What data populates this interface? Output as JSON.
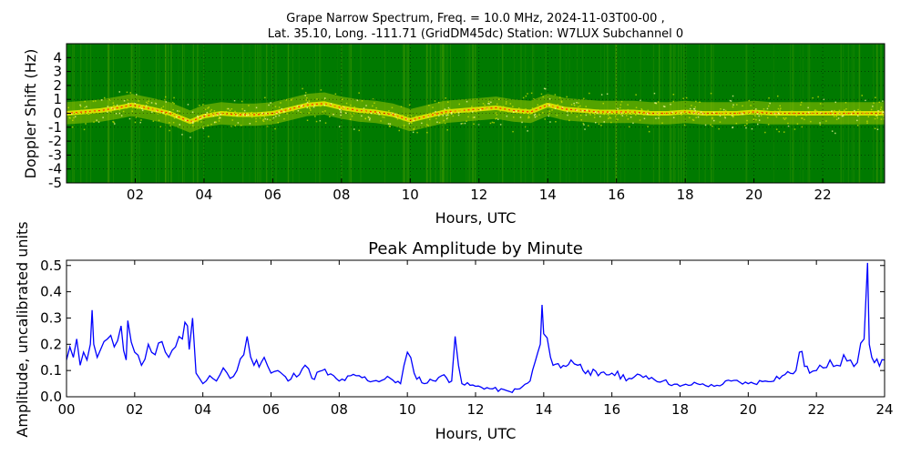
{
  "figure": {
    "title_line1": "Grape Narrow Spectrum, Freq. = 10.0 MHz, 2024-11-03T00-00 ,",
    "title_line2": "Lat.  35.10, Long. -111.71 (GridDM45dc) Station: W7LUX Subchannel 0"
  },
  "chart_data": [
    {
      "type": "heatmap",
      "title": "",
      "xlabel": "Hours, UTC",
      "ylabel": "Doppler Shift (Hz)",
      "xlim": [
        0,
        23.8
      ],
      "ylim": [
        -5,
        5
      ],
      "x_ticks": [
        "02",
        "04",
        "06",
        "08",
        "10",
        "12",
        "14",
        "16",
        "18",
        "20",
        "22"
      ],
      "x_tick_values": [
        2,
        4,
        6,
        8,
        10,
        12,
        14,
        16,
        18,
        20,
        22
      ],
      "y_ticks": [
        "4",
        "3",
        "2",
        "1",
        "0",
        "-1",
        "-2",
        "-3",
        "-4",
        "-5"
      ],
      "y_tick_values": [
        4,
        3,
        2,
        1,
        0,
        -1,
        -2,
        -3,
        -4,
        -5
      ],
      "colors": {
        "background": "#007a00",
        "signal": "#e6e600",
        "peak": "#ff2a00"
      },
      "trace_hours": [
        0,
        0.5,
        1,
        1.5,
        1.9,
        2.5,
        3,
        3.6,
        4,
        4.5,
        5,
        5.5,
        6,
        6.5,
        7,
        7.5,
        8,
        8.5,
        9,
        9.5,
        10,
        10.5,
        11,
        11.5,
        12,
        12.5,
        13,
        13.5,
        14,
        14.5,
        15,
        15.5,
        16,
        16.5,
        17,
        17.5,
        18,
        18.5,
        19,
        19.5,
        20,
        20.5,
        21,
        21.5,
        22,
        22.5,
        23,
        23.5,
        23.8
      ],
      "trace_doppler_hz": [
        0.0,
        0.1,
        0.2,
        0.4,
        0.6,
        0.3,
        0.0,
        -0.6,
        -0.2,
        0.0,
        -0.1,
        -0.1,
        0.0,
        0.3,
        0.6,
        0.7,
        0.4,
        0.2,
        0.1,
        -0.1,
        -0.5,
        -0.2,
        0.1,
        0.2,
        0.3,
        0.4,
        0.2,
        0.1,
        0.6,
        0.3,
        0.2,
        0.1,
        0.1,
        0.1,
        0.0,
        0.0,
        0.1,
        0.0,
        0.0,
        0.0,
        0.1,
        0.0,
        0.0,
        0.0,
        0.0,
        0.0,
        0.0,
        0.0,
        0.0
      ]
    },
    {
      "type": "line",
      "title": "Peak Amplitude by Minute",
      "xlabel": "Hours, UTC",
      "ylabel": "Amplitude, uncalibrated units",
      "xlim": [
        0,
        24
      ],
      "ylim": [
        0,
        0.52
      ],
      "x_ticks": [
        "00",
        "02",
        "04",
        "06",
        "08",
        "10",
        "12",
        "14",
        "16",
        "18",
        "20",
        "22",
        "24"
      ],
      "x_tick_values": [
        0,
        2,
        4,
        6,
        8,
        10,
        12,
        14,
        16,
        18,
        20,
        22,
        24
      ],
      "y_ticks": [
        "0.5",
        "0.4",
        "0.3",
        "0.2",
        "0.1",
        "0.0"
      ],
      "y_tick_values": [
        0.5,
        0.4,
        0.3,
        0.2,
        0.1,
        0.0
      ],
      "color": "#0000ff",
      "series": [
        {
          "x": [
            0,
            0.1,
            0.2,
            0.3,
            0.4,
            0.5,
            0.6,
            0.7,
            0.75,
            0.8,
            0.9,
            1.0,
            1.2,
            1.4,
            1.6,
            1.75,
            1.8,
            2.0,
            2.2,
            2.4,
            2.6,
            2.8,
            3.0,
            3.2,
            3.4,
            3.55,
            3.6,
            3.7,
            3.8,
            4.0,
            4.2,
            4.4,
            4.6,
            4.8,
            5.0,
            5.2,
            5.3,
            5.5,
            5.8,
            6.0,
            6.2,
            6.5,
            7.0,
            7.2,
            7.5,
            8.0,
            8.5,
            9.0,
            9.5,
            9.8,
            10.0,
            10.2,
            10.5,
            11.0,
            11.3,
            11.4,
            11.6,
            12.0,
            12.5,
            13.0,
            13.3,
            13.6,
            13.9,
            13.95,
            14.0,
            14.2,
            14.5,
            14.8,
            15.0,
            15.3,
            15.6,
            16.0,
            16.5,
            17.0,
            17.5,
            18.0,
            18.5,
            19.0,
            19.5,
            20.0,
            20.5,
            21.0,
            21.4,
            21.5,
            21.8,
            22.0,
            22.2,
            22.4,
            22.6,
            22.8,
            23.0,
            23.2,
            23.4,
            23.5,
            23.55,
            23.7,
            24.0
          ],
          "values": [
            0.14,
            0.19,
            0.15,
            0.22,
            0.12,
            0.17,
            0.14,
            0.2,
            0.33,
            0.2,
            0.15,
            0.18,
            0.22,
            0.19,
            0.27,
            0.14,
            0.29,
            0.17,
            0.12,
            0.2,
            0.16,
            0.21,
            0.15,
            0.19,
            0.22,
            0.27,
            0.18,
            0.3,
            0.09,
            0.05,
            0.08,
            0.06,
            0.11,
            0.07,
            0.1,
            0.16,
            0.23,
            0.12,
            0.15,
            0.09,
            0.1,
            0.06,
            0.12,
            0.07,
            0.1,
            0.06,
            0.08,
            0.06,
            0.07,
            0.05,
            0.17,
            0.09,
            0.05,
            0.08,
            0.06,
            0.23,
            0.05,
            0.04,
            0.03,
            0.02,
            0.03,
            0.06,
            0.2,
            0.35,
            0.24,
            0.15,
            0.11,
            0.14,
            0.12,
            0.1,
            0.08,
            0.09,
            0.07,
            0.08,
            0.06,
            0.04,
            0.05,
            0.04,
            0.06,
            0.05,
            0.06,
            0.08,
            0.1,
            0.17,
            0.09,
            0.1,
            0.11,
            0.14,
            0.12,
            0.16,
            0.14,
            0.13,
            0.22,
            0.51,
            0.2,
            0.13,
            0.14
          ]
        }
      ]
    }
  ]
}
